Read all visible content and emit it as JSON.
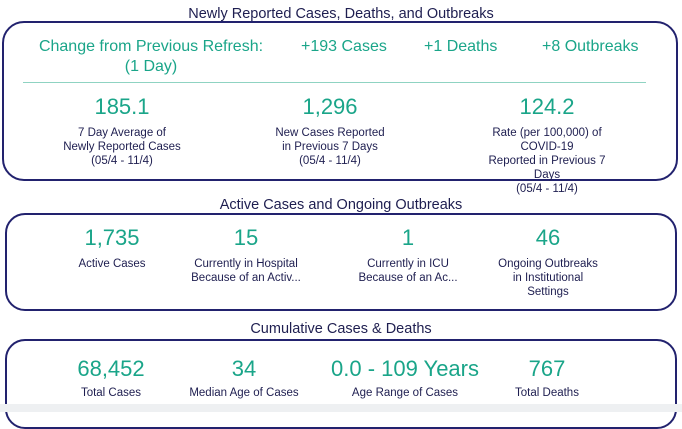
{
  "section1": {
    "title": "Newly Reported Cases, Deaths, and Outbreaks",
    "change_label_line1": "Change from Previous Refresh:",
    "change_label_line2": "(1 Day)",
    "cases_delta": "+193 Cases",
    "deaths_delta": "+1 Deaths",
    "outbreaks_delta": "+8 Outbreaks",
    "stats": [
      {
        "value": "185.1",
        "l1": "7 Day Average of",
        "l2": "Newly Reported Cases",
        "l3": "(05/4 - 11/4)"
      },
      {
        "value": "1,296",
        "l1": "New Cases Reported",
        "l2": "in Previous 7 Days",
        "l3": "(05/4 - 11/4)"
      },
      {
        "value": "124.2",
        "l1": "Rate (per 100,000) of COVID-19",
        "l2": "Reported in Previous 7 Days",
        "l3": "(05/4 - 11/4)"
      }
    ]
  },
  "section2": {
    "title": "Active Cases and Ongoing Outbreaks",
    "stats": [
      {
        "value": "1,735",
        "l1": "Active Cases",
        "l2": "",
        "l3": ""
      },
      {
        "value": "15",
        "l1": "Currently in Hospital",
        "l2": "Because of an Activ...",
        "l3": ""
      },
      {
        "value": "1",
        "l1": "Currently in ICU",
        "l2": "Because of an Ac...",
        "l3": ""
      },
      {
        "value": "46",
        "l1": "Ongoing Outbreaks",
        "l2": "in Institutional",
        "l3": "Settings"
      }
    ]
  },
  "section3": {
    "title": "Cumulative Cases & Deaths",
    "stats": [
      {
        "value": "68,452",
        "l1": "Total Cases"
      },
      {
        "value": "34",
        "l1": "Median Age of Cases"
      },
      {
        "value": "0.0 - 109 Years",
        "l1": "Age Range of Cases"
      },
      {
        "value": "767",
        "l1": "Total Deaths"
      }
    ]
  },
  "colors": {
    "accent": "#1aa589",
    "border": "#22226e",
    "text": "#1e1e50"
  }
}
